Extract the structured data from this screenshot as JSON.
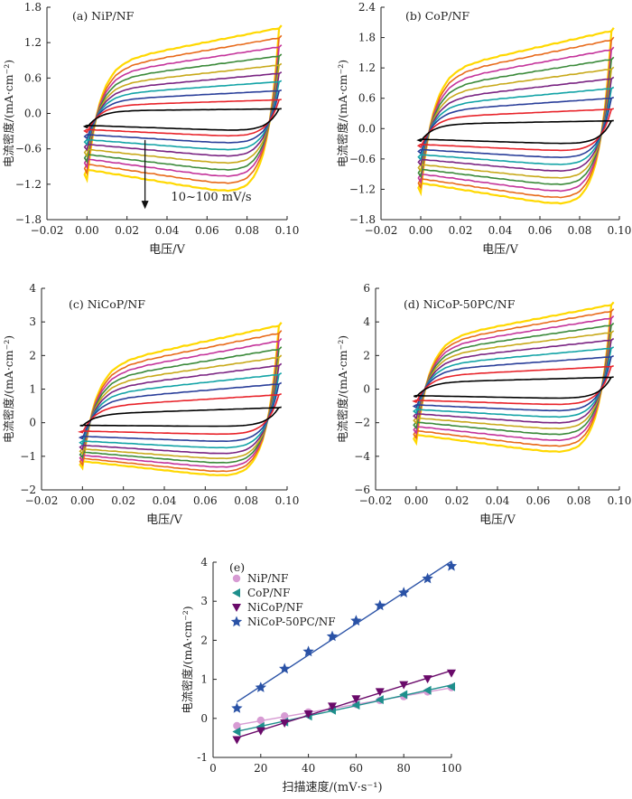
{
  "panels": {
    "a": {
      "title": "(a) NiP/NF",
      "annotation": "10~100 mV/s"
    },
    "b": {
      "title": "(b) CoP/NF"
    },
    "c": {
      "title": "(c) NiCoP/NF"
    },
    "d": {
      "title": "(d) NiCoP-50PC/NF"
    },
    "e": {
      "title": "(e)"
    }
  },
  "chart_data": [
    {
      "type": "line",
      "panel": "a",
      "title": "(a) NiP/NF",
      "xlabel": "电压/V",
      "ylabel": "电流密度/(mA·cm⁻²)",
      "xlim": [
        -0.02,
        0.1
      ],
      "ylim": [
        -1.8,
        1.8
      ],
      "xticks": [
        -0.02,
        0.0,
        0.02,
        0.04,
        0.06,
        0.08,
        0.1
      ],
      "xtick_labels": [
        "−0.02",
        "0.00",
        "0.02",
        "0.04",
        "0.06",
        "0.08",
        "0.10"
      ],
      "yticks": [
        -1.8,
        -1.2,
        -0.6,
        0.0,
        0.6,
        1.2,
        1.8
      ],
      "ytick_labels": [
        "−1.8",
        "−1.2",
        "−0.6",
        "0.0",
        "0.6",
        "1.2",
        "1.8"
      ],
      "scan_rates_mV_s": [
        10,
        20,
        30,
        40,
        50,
        60,
        70,
        80,
        90,
        100
      ],
      "cycle_voltage_range_V": [
        0.0,
        0.096
      ],
      "upper_current_at_0.05V": [
        0.06,
        0.18,
        0.3,
        0.42,
        0.53,
        0.64,
        0.76,
        0.88,
        1.0,
        1.13
      ],
      "lower_current_at_0.05V": [
        -0.26,
        -0.35,
        -0.46,
        -0.57,
        -0.67,
        -0.78,
        -0.89,
        -0.99,
        -1.1,
        -1.22
      ],
      "annotation": "10~100 mV/s",
      "series_colors": [
        "#000000",
        "#e8232a",
        "#2a3f9a",
        "#12a3a6",
        "#7a2482",
        "#c8a91a",
        "#3b8a3a",
        "#c4339a",
        "#e86a1a",
        "#ffd800"
      ]
    },
    {
      "type": "line",
      "panel": "b",
      "title": "(b) CoP/NF",
      "xlabel": "电压/V",
      "ylabel": "电流密度/(mA·cm⁻²)",
      "xlim": [
        -0.02,
        0.1
      ],
      "ylim": [
        -1.8,
        2.4
      ],
      "xticks": [
        -0.02,
        0.0,
        0.02,
        0.04,
        0.06,
        0.08,
        0.1
      ],
      "xtick_labels": [
        "−0.02",
        "0.00",
        "0.02",
        "0.04",
        "0.06",
        "0.08",
        "0.10"
      ],
      "yticks": [
        -1.8,
        -1.2,
        -0.6,
        0.0,
        0.6,
        1.2,
        1.8,
        2.4
      ],
      "ytick_labels": [
        "−1.8",
        "−1.2",
        "−0.6",
        "0.0",
        "0.6",
        "1.2",
        "1.8",
        "2.4"
      ],
      "scan_rates_mV_s": [
        10,
        20,
        30,
        40,
        50,
        60,
        70,
        80,
        90,
        100
      ],
      "cycle_voltage_range_V": [
        0.0,
        0.096
      ],
      "upper_current_at_0.05V": [
        0.12,
        0.3,
        0.47,
        0.62,
        0.77,
        0.92,
        1.07,
        1.22,
        1.37,
        1.51
      ],
      "lower_current_at_0.05V": [
        -0.27,
        -0.4,
        -0.53,
        -0.66,
        -0.78,
        -0.91,
        -1.03,
        -1.15,
        -1.27,
        -1.38
      ],
      "series_colors": [
        "#000000",
        "#e8232a",
        "#2a3f9a",
        "#12a3a6",
        "#7a2482",
        "#c8a91a",
        "#3b8a3a",
        "#c4339a",
        "#e86a1a",
        "#ffd800"
      ]
    },
    {
      "type": "line",
      "panel": "c",
      "title": "(c) NiCoP/NF",
      "xlabel": "电压/V",
      "ylabel": "电流密度/(mA·cm⁻²)",
      "xlim": [
        -0.02,
        0.1
      ],
      "ylim": [
        -2,
        4
      ],
      "xticks": [
        -0.02,
        0.0,
        0.02,
        0.04,
        0.06,
        0.08,
        0.1
      ],
      "xtick_labels": [
        "−0.02",
        "0.00",
        "0.02",
        "0.04",
        "0.06",
        "0.08",
        "0.10"
      ],
      "yticks": [
        -2,
        -1,
        0,
        1,
        2,
        3,
        4
      ],
      "ytick_labels": [
        "−2",
        "−1",
        "0",
        "1",
        "2",
        "3",
        "4"
      ],
      "scan_rates_mV_s": [
        10,
        20,
        30,
        40,
        50,
        60,
        70,
        80,
        90,
        100
      ],
      "cycle_voltage_range_V": [
        0.0,
        0.096
      ],
      "upper_current_at_0.05V": [
        0.35,
        0.65,
        0.9,
        1.12,
        1.33,
        1.52,
        1.71,
        1.9,
        2.08,
        2.26
      ],
      "lower_current_at_0.05V": [
        -0.1,
        -0.32,
        -0.52,
        -0.7,
        -0.86,
        -1.0,
        -1.12,
        -1.24,
        -1.36,
        -1.47
      ],
      "series_colors": [
        "#000000",
        "#e8232a",
        "#2a3f9a",
        "#12a3a6",
        "#7a2482",
        "#c8a91a",
        "#3b8a3a",
        "#c4339a",
        "#e86a1a",
        "#ffd800"
      ]
    },
    {
      "type": "line",
      "panel": "d",
      "title": "(d) NiCoP-50PC/NF",
      "xlabel": "电压/V",
      "ylabel": "电流密度/(mA·cm⁻²)",
      "xlim": [
        -0.02,
        0.1
      ],
      "ylim": [
        -6,
        6
      ],
      "xticks": [
        -0.02,
        0.0,
        0.02,
        0.04,
        0.06,
        0.08,
        0.1
      ],
      "xtick_labels": [
        "−0.02",
        "0.00",
        "0.02",
        "0.04",
        "0.06",
        "0.08",
        "0.10"
      ],
      "yticks": [
        -6,
        -4,
        -2,
        0,
        2,
        4,
        6
      ],
      "ytick_labels": [
        "−6",
        "−4",
        "−2",
        "0",
        "2",
        "4",
        "6"
      ],
      "scan_rates_mV_s": [
        10,
        20,
        30,
        40,
        50,
        60,
        70,
        80,
        90,
        100
      ],
      "cycle_voltage_range_V": [
        0.0,
        0.096
      ],
      "upper_current_at_0.05V": [
        0.55,
        1.05,
        1.5,
        1.9,
        2.28,
        2.63,
        2.97,
        3.3,
        3.62,
        3.92
      ],
      "lower_current_at_0.05V": [
        -0.5,
        -0.85,
        -1.2,
        -1.55,
        -1.88,
        -2.2,
        -2.52,
        -2.85,
        -3.17,
        -3.48
      ],
      "series_colors": [
        "#000000",
        "#e8232a",
        "#2a3f9a",
        "#12a3a6",
        "#7a2482",
        "#c8a91a",
        "#3b8a3a",
        "#c4339a",
        "#e86a1a",
        "#ffd800"
      ]
    },
    {
      "type": "scatter",
      "panel": "e",
      "title": "(e)",
      "xlabel": "扫描速度/(mV·s⁻¹)",
      "ylabel": "电流密度/(mA·cm⁻²)",
      "xlim": [
        0,
        100
      ],
      "ylim": [
        -1,
        4
      ],
      "xticks": [
        0,
        20,
        40,
        60,
        80,
        100
      ],
      "yticks": [
        -1,
        0,
        1,
        2,
        3,
        4
      ],
      "x": [
        10,
        20,
        30,
        40,
        50,
        60,
        70,
        80,
        90,
        100
      ],
      "legend_placement": "top-left",
      "series": [
        {
          "name": "NiP/NF",
          "marker": "circle",
          "color": "#d79bd3",
          "values": [
            -0.19,
            -0.05,
            0.06,
            0.16,
            0.25,
            0.36,
            0.46,
            0.56,
            0.68,
            0.79
          ]
        },
        {
          "name": "CoP/NF",
          "marker": "triangle-left",
          "color": "#1e8f8c",
          "values": [
            -0.34,
            -0.21,
            -0.09,
            0.06,
            0.21,
            0.34,
            0.48,
            0.61,
            0.72,
            0.81
          ]
        },
        {
          "name": "NiCoP/NF",
          "marker": "triangle-down",
          "color": "#6a0a6a",
          "values": [
            -0.55,
            -0.32,
            -0.12,
            0.11,
            0.31,
            0.5,
            0.68,
            0.86,
            1.01,
            1.16
          ]
        },
        {
          "name": "NiCoP-50PC/NF",
          "marker": "star",
          "color": "#2a52a6",
          "values": [
            0.26,
            0.79,
            1.27,
            1.71,
            2.1,
            2.5,
            2.89,
            3.22,
            3.58,
            3.9
          ]
        }
      ]
    }
  ]
}
